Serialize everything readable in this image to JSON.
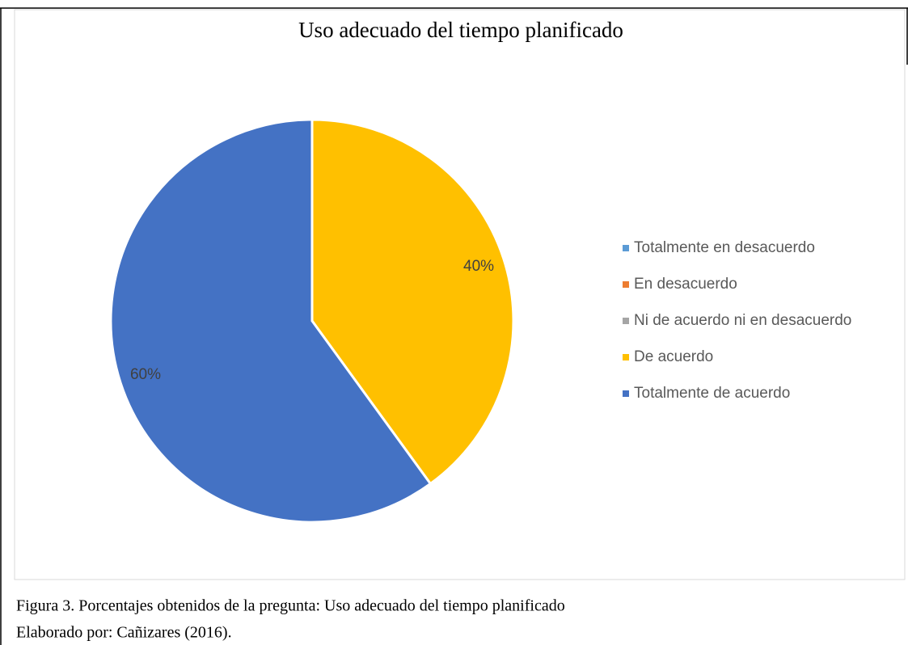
{
  "chart_data": {
    "type": "pie",
    "title": "Uso adecuado del tiempo planificado",
    "categories": [
      "Totalmente en desacuerdo",
      "En desacuerdo",
      "Ni de acuerdo ni en desacuerdo",
      "De acuerdo",
      "Totalmente de acuerdo"
    ],
    "values": [
      0,
      0,
      0,
      40,
      60
    ],
    "value_labels": [
      null,
      null,
      null,
      "40%",
      "60%"
    ],
    "colors": [
      "#5b9bd5",
      "#ed7d31",
      "#a5a5a5",
      "#ffc000",
      "#4472c4"
    ],
    "legend": "right"
  },
  "caption": [
    "Figura 3. Porcentajes obtenidos de la pregunta: Uso adecuado del tiempo planificado",
    "Elaborado por: Cañizares (2016)."
  ]
}
